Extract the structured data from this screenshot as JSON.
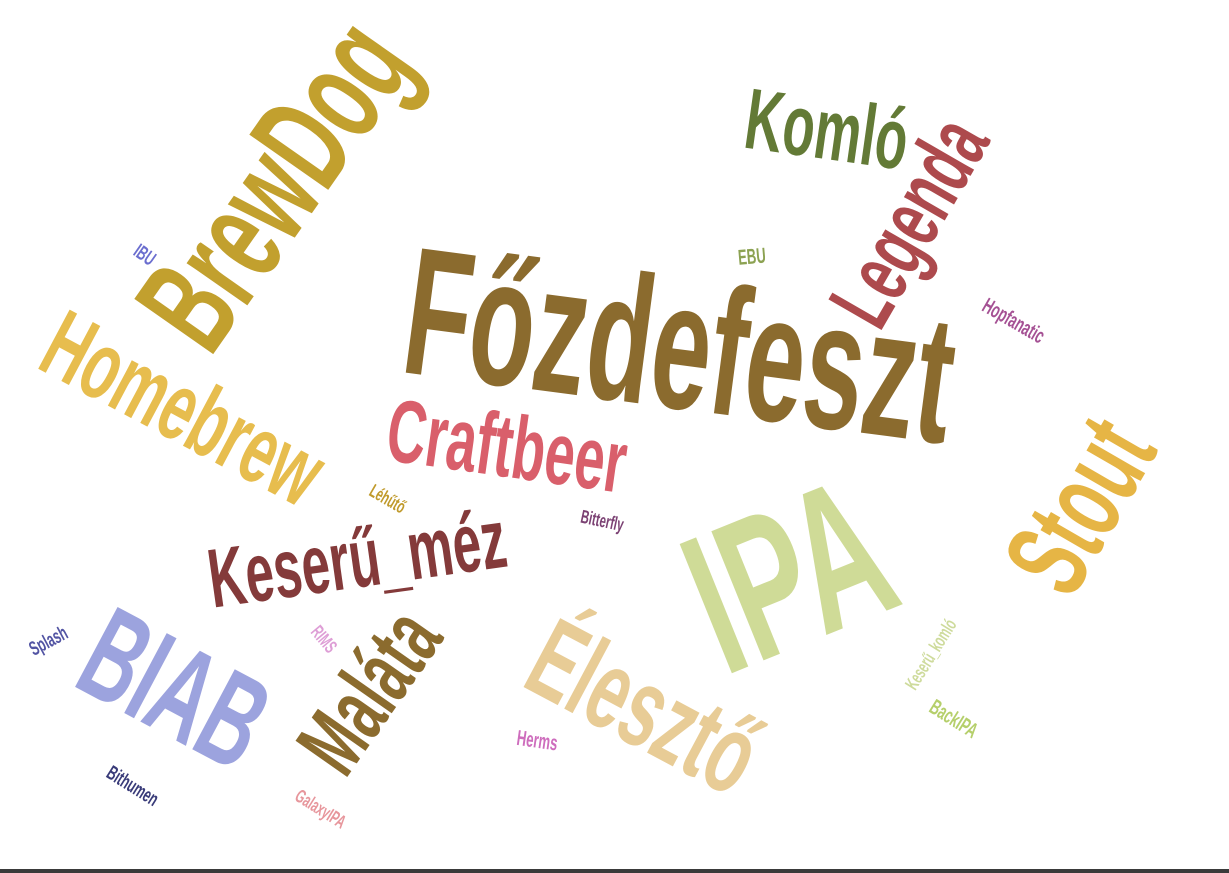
{
  "words": [
    {
      "text": "Főzdefeszt",
      "color": "#8B6B2E"
    },
    {
      "text": "IPA",
      "color": "#CFDB97"
    },
    {
      "text": "BrewDog",
      "color": "#C2A02E"
    },
    {
      "text": "Homebrew",
      "color": "#E7BD4E"
    },
    {
      "text": "Komló",
      "color": "#637A36"
    },
    {
      "text": "Legenda",
      "color": "#AD4A4D"
    },
    {
      "text": "Stout",
      "color": "#E6B545"
    },
    {
      "text": "Élesztő",
      "color": "#E8CC96"
    },
    {
      "text": "Craftbeer",
      "color": "#D95F6B"
    },
    {
      "text": "Keserű_méz",
      "color": "#843A3A"
    },
    {
      "text": "BIAB",
      "color": "#9CA3DE"
    },
    {
      "text": "Maláta",
      "color": "#8B6B2E"
    },
    {
      "text": "IBU",
      "color": "#6B6ECF"
    },
    {
      "text": "EBU",
      "color": "#8CA252"
    },
    {
      "text": "Hopfanatic",
      "color": "#A55194"
    },
    {
      "text": "Léhűtő",
      "color": "#C09A2B"
    },
    {
      "text": "Bitterfly",
      "color": "#7B4173"
    },
    {
      "text": "Splash",
      "color": "#5254A3"
    },
    {
      "text": "RIMS",
      "color": "#DE9ED6"
    },
    {
      "text": "Keserű_komló",
      "color": "#CEDB9C"
    },
    {
      "text": "BackIPA",
      "color": "#B5CF6B"
    },
    {
      "text": "Herms",
      "color": "#CE6DBD"
    },
    {
      "text": "Bithumen",
      "color": "#393B79"
    },
    {
      "text": "GalaxyIPA",
      "color": "#E7969C"
    }
  ]
}
